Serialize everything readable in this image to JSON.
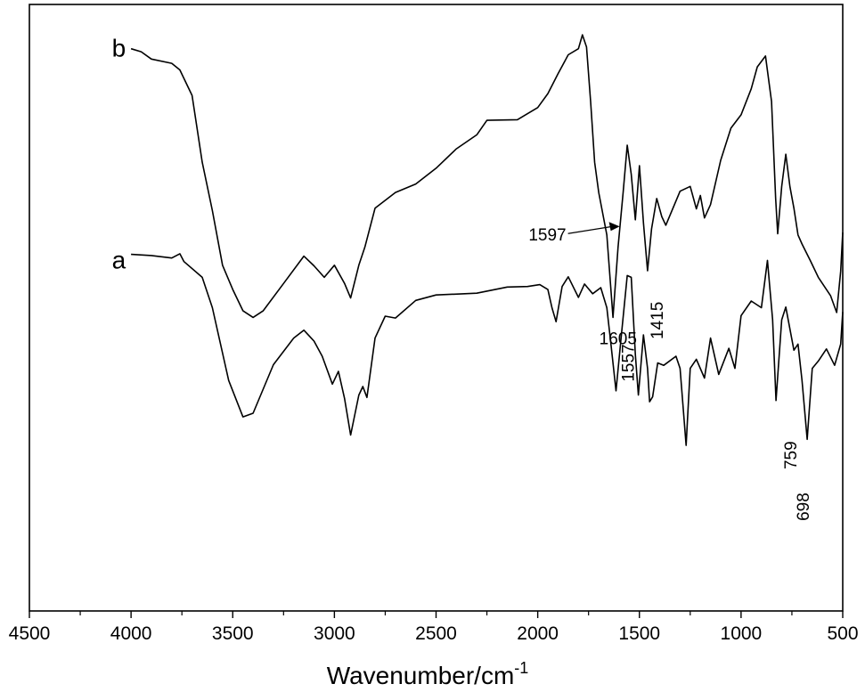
{
  "chart_data": {
    "type": "line",
    "title": "",
    "xlabel": "Wavenumber/cm",
    "xlabel_superscript": "-1",
    "ylabel": "",
    "x_reversed": true,
    "xlim": [
      4500,
      500
    ],
    "ylim": [
      0,
      100
    ],
    "x_ticks": [
      "4500",
      "4000",
      "3500",
      "3000",
      "2500",
      "2000",
      "1500",
      "1000",
      "500"
    ],
    "grid": false,
    "series": [
      {
        "name": "a",
        "points": [
          [
            4000,
            58.8
          ],
          [
            3900,
            58.6
          ],
          [
            3800,
            58.2
          ],
          [
            3760,
            58.9
          ],
          [
            3740,
            57.6
          ],
          [
            3650,
            55.0
          ],
          [
            3600,
            50.0
          ],
          [
            3520,
            38.0
          ],
          [
            3450,
            32.0
          ],
          [
            3400,
            32.6
          ],
          [
            3300,
            40.6
          ],
          [
            3200,
            45.0
          ],
          [
            3150,
            46.3
          ],
          [
            3100,
            44.5
          ],
          [
            3060,
            42.0
          ],
          [
            3010,
            37.4
          ],
          [
            2980,
            39.5
          ],
          [
            2950,
            35.0
          ],
          [
            2920,
            29.0
          ],
          [
            2880,
            35.6
          ],
          [
            2860,
            37.0
          ],
          [
            2840,
            35.2
          ],
          [
            2800,
            45.0
          ],
          [
            2750,
            48.6
          ],
          [
            2700,
            48.3
          ],
          [
            2600,
            51.2
          ],
          [
            2500,
            52.1
          ],
          [
            2300,
            52.4
          ],
          [
            2150,
            53.4
          ],
          [
            2050,
            53.5
          ],
          [
            1990,
            53.8
          ],
          [
            1950,
            53.0
          ],
          [
            1930,
            50.0
          ],
          [
            1910,
            47.7
          ],
          [
            1880,
            53.5
          ],
          [
            1850,
            55.1
          ],
          [
            1800,
            51.7
          ],
          [
            1770,
            53.9
          ],
          [
            1730,
            52.3
          ],
          [
            1690,
            53.3
          ],
          [
            1660,
            50.0
          ],
          [
            1640,
            44.0
          ],
          [
            1615,
            36.3
          ],
          [
            1590,
            45.0
          ],
          [
            1560,
            55.3
          ],
          [
            1540,
            55.0
          ],
          [
            1520,
            42.3
          ],
          [
            1505,
            35.6
          ],
          [
            1480,
            45.5
          ],
          [
            1460,
            40.0
          ],
          [
            1450,
            34.5
          ],
          [
            1435,
            35.3
          ],
          [
            1410,
            40.9
          ],
          [
            1380,
            40.5
          ],
          [
            1320,
            42.0
          ],
          [
            1300,
            40.0
          ],
          [
            1270,
            27.3
          ],
          [
            1250,
            40.0
          ],
          [
            1220,
            41.5
          ],
          [
            1180,
            38.4
          ],
          [
            1150,
            45.0
          ],
          [
            1110,
            39.0
          ],
          [
            1060,
            43.3
          ],
          [
            1030,
            40.0
          ],
          [
            1000,
            48.7
          ],
          [
            950,
            51.1
          ],
          [
            900,
            50.0
          ],
          [
            870,
            57.8
          ],
          [
            845,
            48.0
          ],
          [
            828,
            34.7
          ],
          [
            800,
            48.0
          ],
          [
            780,
            50.1
          ],
          [
            740,
            43.0
          ],
          [
            720,
            44.0
          ],
          [
            700,
            38.0
          ],
          [
            675,
            28.3
          ],
          [
            650,
            40.0
          ],
          [
            620,
            41.2
          ],
          [
            580,
            43.2
          ],
          [
            540,
            40.5
          ],
          [
            510,
            44.0
          ],
          [
            500,
            49.3
          ]
        ]
      },
      {
        "name": "b",
        "points": [
          [
            4000,
            92.7
          ],
          [
            3950,
            92.2
          ],
          [
            3900,
            91.0
          ],
          [
            3800,
            90.3
          ],
          [
            3760,
            89.2
          ],
          [
            3700,
            85.0
          ],
          [
            3650,
            74.0
          ],
          [
            3600,
            66.0
          ],
          [
            3550,
            57.0
          ],
          [
            3500,
            53.0
          ],
          [
            3450,
            49.5
          ],
          [
            3400,
            48.4
          ],
          [
            3350,
            49.5
          ],
          [
            3250,
            54.0
          ],
          [
            3150,
            58.5
          ],
          [
            3100,
            56.9
          ],
          [
            3050,
            55.0
          ],
          [
            3000,
            57.0
          ],
          [
            2950,
            54.0
          ],
          [
            2920,
            51.6
          ],
          [
            2880,
            57.0
          ],
          [
            2850,
            60.0
          ],
          [
            2800,
            66.4
          ],
          [
            2700,
            69.0
          ],
          [
            2600,
            70.4
          ],
          [
            2500,
            73.0
          ],
          [
            2400,
            76.2
          ],
          [
            2300,
            78.5
          ],
          [
            2250,
            80.9
          ],
          [
            2100,
            81.0
          ],
          [
            2000,
            83.0
          ],
          [
            1950,
            85.3
          ],
          [
            1900,
            88.6
          ],
          [
            1850,
            91.7
          ],
          [
            1800,
            92.7
          ],
          [
            1780,
            95.0
          ],
          [
            1760,
            93.0
          ],
          [
            1740,
            84.0
          ],
          [
            1720,
            74.0
          ],
          [
            1700,
            69.0
          ],
          [
            1660,
            62.0
          ],
          [
            1630,
            48.4
          ],
          [
            1605,
            60.0
          ],
          [
            1580,
            69.0
          ],
          [
            1560,
            76.8
          ],
          [
            1540,
            72.0
          ],
          [
            1520,
            64.5
          ],
          [
            1500,
            73.4
          ],
          [
            1480,
            64.0
          ],
          [
            1460,
            56.1
          ],
          [
            1440,
            63.0
          ],
          [
            1415,
            68.0
          ],
          [
            1390,
            65.0
          ],
          [
            1370,
            63.6
          ],
          [
            1300,
            69.2
          ],
          [
            1250,
            70.0
          ],
          [
            1220,
            66.3
          ],
          [
            1200,
            68.5
          ],
          [
            1180,
            64.8
          ],
          [
            1150,
            67.0
          ],
          [
            1100,
            74.3
          ],
          [
            1050,
            79.6
          ],
          [
            1000,
            81.8
          ],
          [
            950,
            86.1
          ],
          [
            920,
            89.7
          ],
          [
            880,
            91.5
          ],
          [
            850,
            84.0
          ],
          [
            830,
            68.0
          ],
          [
            820,
            62.2
          ],
          [
            800,
            70.0
          ],
          [
            780,
            75.3
          ],
          [
            760,
            70.0
          ],
          [
            740,
            66.4
          ],
          [
            720,
            62.0
          ],
          [
            700,
            60.5
          ],
          [
            660,
            57.8
          ],
          [
            620,
            55.0
          ],
          [
            560,
            52.0
          ],
          [
            530,
            49.2
          ],
          [
            510,
            56.0
          ],
          [
            500,
            62.4
          ]
        ]
      }
    ],
    "annotations": [
      {
        "text": "1597",
        "x": 1597,
        "y": 63.4,
        "rotated": false,
        "arrow": true
      },
      {
        "text": "1605",
        "x": 1605,
        "y": 44.0,
        "rotated": false
      },
      {
        "text": "1557",
        "x": 1557,
        "y": 44.0,
        "rotated": true
      },
      {
        "text": "1415",
        "x": 1415,
        "y": 51.0,
        "rotated": true
      },
      {
        "text": "759",
        "x": 759,
        "y": 28.0,
        "rotated": true
      },
      {
        "text": "698",
        "x": 698,
        "y": 19.5,
        "rotated": true
      }
    ],
    "curve_labels": [
      {
        "text": "b",
        "x": 4060,
        "y": 92.7
      },
      {
        "text": "a",
        "x": 4060,
        "y": 57.8
      }
    ]
  }
}
